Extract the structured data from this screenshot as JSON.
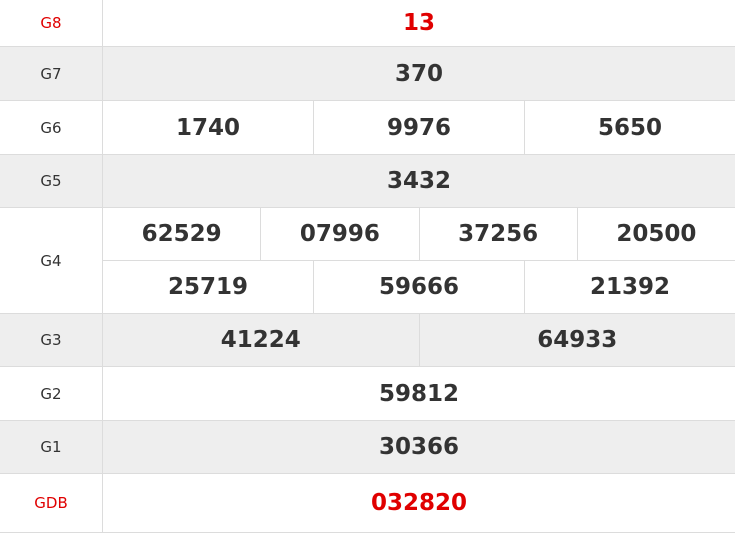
{
  "colors": {
    "special": "#e00000",
    "text": "#333333",
    "alt_row": "#eeeeee"
  },
  "rows": [
    {
      "label": "G8",
      "values": [
        [
          "13"
        ]
      ],
      "red": true
    },
    {
      "label": "G7",
      "values": [
        [
          "370"
        ]
      ]
    },
    {
      "label": "G6",
      "values": [
        [
          "1740",
          "9976",
          "5650"
        ]
      ]
    },
    {
      "label": "G5",
      "values": [
        [
          "3432"
        ]
      ]
    },
    {
      "label": "G4",
      "values": [
        [
          "62529",
          "07996",
          "37256",
          "20500"
        ],
        [
          "25719",
          "59666",
          "21392"
        ]
      ]
    },
    {
      "label": "G3",
      "values": [
        [
          "41224",
          "64933"
        ]
      ]
    },
    {
      "label": "G2",
      "values": [
        [
          "59812"
        ]
      ]
    },
    {
      "label": "G1",
      "values": [
        [
          "30366"
        ]
      ]
    },
    {
      "label": "GDB",
      "values": [
        [
          "032820"
        ]
      ],
      "red": true
    }
  ]
}
